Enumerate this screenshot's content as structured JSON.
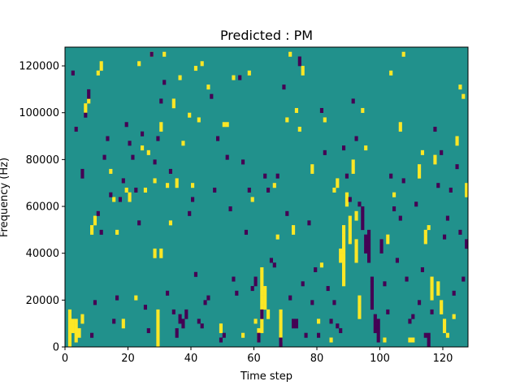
{
  "chart_data": {
    "type": "heatmap",
    "title": "Predicted : PM",
    "xlabel": "Time step",
    "ylabel": "Frequency (Hz)",
    "xlim": [
      0,
      128
    ],
    "ylim": [
      0,
      128000
    ],
    "x_ticks": [
      0,
      20,
      40,
      60,
      80,
      100,
      120
    ],
    "x_tick_labels": [
      "0",
      "20",
      "40",
      "60",
      "80",
      "100",
      "120"
    ],
    "y_ticks": [
      0,
      20000,
      40000,
      60000,
      80000,
      100000,
      120000
    ],
    "y_tick_labels": [
      "0",
      "20000",
      "40000",
      "60000",
      "80000",
      "100000",
      "120000"
    ],
    "grid": false,
    "legend": "none",
    "time_steps": 128,
    "frequency_bins": 64,
    "colors": {
      "background_value": "#21918c",
      "high_value": "#fde725",
      "low_value": "#440154"
    },
    "cells": {
      "high": [
        [
          1,
          0
        ],
        [
          1,
          1
        ],
        [
          1,
          2
        ],
        [
          1,
          3
        ],
        [
          1,
          4
        ],
        [
          1,
          5
        ],
        [
          1,
          6
        ],
        [
          1,
          7
        ],
        [
          2,
          3
        ],
        [
          2,
          4
        ],
        [
          2,
          5
        ],
        [
          3,
          1
        ],
        [
          3,
          2
        ],
        [
          3,
          3
        ],
        [
          3,
          4
        ],
        [
          3,
          5
        ],
        [
          4,
          2
        ],
        [
          4,
          3
        ],
        [
          5,
          5
        ],
        [
          5,
          6
        ],
        [
          6,
          50
        ],
        [
          6,
          51
        ],
        [
          7,
          52
        ],
        [
          8,
          24
        ],
        [
          8,
          25
        ],
        [
          9,
          26
        ],
        [
          9,
          27
        ],
        [
          10,
          58
        ],
        [
          11,
          59
        ],
        [
          11,
          60
        ],
        [
          14,
          37
        ],
        [
          15,
          31
        ],
        [
          16,
          24
        ],
        [
          18,
          4
        ],
        [
          18,
          5
        ],
        [
          19,
          33
        ],
        [
          20,
          31
        ],
        [
          20,
          32
        ],
        [
          22,
          10
        ],
        [
          23,
          60
        ],
        [
          24,
          42
        ],
        [
          25,
          33
        ],
        [
          26,
          41
        ],
        [
          27,
          62
        ],
        [
          28,
          19
        ],
        [
          28,
          20
        ],
        [
          28,
          35
        ],
        [
          29,
          0
        ],
        [
          29,
          1
        ],
        [
          29,
          2
        ],
        [
          29,
          3
        ],
        [
          29,
          4
        ],
        [
          29,
          5
        ],
        [
          29,
          6
        ],
        [
          29,
          7
        ],
        [
          30,
          19
        ],
        [
          30,
          20
        ],
        [
          30,
          46
        ],
        [
          30,
          47
        ],
        [
          31,
          62
        ],
        [
          32,
          34
        ],
        [
          33,
          26
        ],
        [
          34,
          51
        ],
        [
          34,
          52
        ],
        [
          35,
          34
        ],
        [
          35,
          35
        ],
        [
          36,
          57
        ],
        [
          37,
          43
        ],
        [
          39,
          49
        ],
        [
          40,
          34
        ],
        [
          41,
          59
        ],
        [
          42,
          48
        ],
        [
          43,
          60
        ],
        [
          45,
          55
        ],
        [
          49,
          3
        ],
        [
          49,
          4
        ],
        [
          50,
          47
        ],
        [
          51,
          47
        ],
        [
          53,
          57
        ],
        [
          56,
          2
        ],
        [
          58,
          58
        ],
        [
          59,
          31
        ],
        [
          60,
          5
        ],
        [
          61,
          1
        ],
        [
          61,
          2
        ],
        [
          61,
          3
        ],
        [
          62,
          3
        ],
        [
          62,
          4
        ],
        [
          62,
          5
        ],
        [
          62,
          6
        ],
        [
          62,
          7
        ],
        [
          62,
          8
        ],
        [
          62,
          9
        ],
        [
          62,
          10
        ],
        [
          62,
          11
        ],
        [
          62,
          12
        ],
        [
          62,
          13
        ],
        [
          62,
          14
        ],
        [
          62,
          15
        ],
        [
          62,
          16
        ],
        [
          63,
          8
        ],
        [
          63,
          9
        ],
        [
          63,
          10
        ],
        [
          63,
          11
        ],
        [
          63,
          12
        ],
        [
          64,
          6
        ],
        [
          64,
          7
        ],
        [
          66,
          34
        ],
        [
          67,
          23
        ],
        [
          68,
          1
        ],
        [
          68,
          2
        ],
        [
          68,
          3
        ],
        [
          68,
          4
        ],
        [
          68,
          5
        ],
        [
          68,
          6
        ],
        [
          68,
          7
        ],
        [
          70,
          48
        ],
        [
          71,
          62
        ],
        [
          72,
          24
        ],
        [
          72,
          25
        ],
        [
          73,
          50
        ],
        [
          74,
          46
        ],
        [
          75,
          58
        ],
        [
          75,
          59
        ],
        [
          78,
          37
        ],
        [
          78,
          38
        ],
        [
          80,
          5
        ],
        [
          81,
          17
        ],
        [
          82,
          48
        ],
        [
          84,
          1
        ],
        [
          85,
          33
        ],
        [
          86,
          34
        ],
        [
          86,
          35
        ],
        [
          87,
          18
        ],
        [
          87,
          19
        ],
        [
          87,
          20
        ],
        [
          88,
          13
        ],
        [
          88,
          14
        ],
        [
          88,
          15
        ],
        [
          88,
          16
        ],
        [
          88,
          17
        ],
        [
          88,
          18
        ],
        [
          88,
          19
        ],
        [
          88,
          20
        ],
        [
          88,
          21
        ],
        [
          88,
          22
        ],
        [
          88,
          23
        ],
        [
          88,
          24
        ],
        [
          88,
          25
        ],
        [
          89,
          30
        ],
        [
          89,
          31
        ],
        [
          89,
          32
        ],
        [
          90,
          22
        ],
        [
          90,
          23
        ],
        [
          90,
          24
        ],
        [
          90,
          25
        ],
        [
          90,
          26
        ],
        [
          90,
          27
        ],
        [
          91,
          37
        ],
        [
          91,
          38
        ],
        [
          91,
          39
        ],
        [
          92,
          18
        ],
        [
          92,
          19
        ],
        [
          92,
          20
        ],
        [
          92,
          21
        ],
        [
          92,
          22
        ],
        [
          92,
          27
        ],
        [
          92,
          28
        ],
        [
          93,
          6
        ],
        [
          93,
          7
        ],
        [
          93,
          8
        ],
        [
          93,
          9
        ],
        [
          93,
          10
        ],
        [
          94,
          50
        ],
        [
          95,
          42
        ],
        [
          101,
          1
        ],
        [
          102,
          22
        ],
        [
          102,
          23
        ],
        [
          103,
          58
        ],
        [
          104,
          32
        ],
        [
          106,
          46
        ],
        [
          106,
          47
        ],
        [
          107,
          62
        ],
        [
          109,
          1
        ],
        [
          110,
          1
        ],
        [
          112,
          36
        ],
        [
          112,
          37
        ],
        [
          112,
          38
        ],
        [
          113,
          41
        ],
        [
          114,
          22
        ],
        [
          114,
          23
        ],
        [
          114,
          24
        ],
        [
          115,
          25
        ],
        [
          116,
          10
        ],
        [
          116,
          11
        ],
        [
          116,
          12
        ],
        [
          116,
          13
        ],
        [
          116,
          14
        ],
        [
          117,
          39
        ],
        [
          117,
          40
        ],
        [
          118,
          11
        ],
        [
          118,
          12
        ],
        [
          118,
          13
        ],
        [
          119,
          7
        ],
        [
          119,
          8
        ],
        [
          119,
          9
        ],
        [
          120,
          3
        ],
        [
          120,
          4
        ],
        [
          120,
          5
        ],
        [
          121,
          2
        ],
        [
          123,
          6
        ],
        [
          124,
          43
        ],
        [
          124,
          44
        ],
        [
          125,
          55
        ],
        [
          126,
          53
        ],
        [
          127,
          32
        ],
        [
          127,
          33
        ],
        [
          127,
          34
        ]
      ],
      "low": [
        [
          2,
          58
        ],
        [
          3,
          46
        ],
        [
          5,
          36
        ],
        [
          5,
          37
        ],
        [
          6,
          49
        ],
        [
          7,
          53
        ],
        [
          7,
          54
        ],
        [
          8,
          2
        ],
        [
          9,
          9
        ],
        [
          10,
          28
        ],
        [
          11,
          24
        ],
        [
          12,
          40
        ],
        [
          13,
          44
        ],
        [
          14,
          32
        ],
        [
          15,
          5
        ],
        [
          16,
          10
        ],
        [
          17,
          31
        ],
        [
          18,
          35
        ],
        [
          19,
          47
        ],
        [
          20,
          43
        ],
        [
          21,
          40
        ],
        [
          22,
          33
        ],
        [
          23,
          26
        ],
        [
          24,
          45
        ],
        [
          25,
          8
        ],
        [
          26,
          3
        ],
        [
          27,
          62
        ],
        [
          28,
          39
        ],
        [
          29,
          44
        ],
        [
          30,
          52
        ],
        [
          31,
          56
        ],
        [
          32,
          11
        ],
        [
          33,
          37
        ],
        [
          34,
          7
        ],
        [
          35,
          2
        ],
        [
          35,
          3
        ],
        [
          36,
          5
        ],
        [
          36,
          6
        ],
        [
          37,
          4
        ],
        [
          37,
          5
        ],
        [
          38,
          6
        ],
        [
          38,
          7
        ],
        [
          39,
          28
        ],
        [
          40,
          31
        ],
        [
          41,
          15
        ],
        [
          42,
          5
        ],
        [
          43,
          4
        ],
        [
          44,
          9
        ],
        [
          45,
          10
        ],
        [
          46,
          53
        ],
        [
          47,
          33
        ],
        [
          48,
          44
        ],
        [
          49,
          1
        ],
        [
          50,
          2
        ],
        [
          51,
          40
        ],
        [
          52,
          29
        ],
        [
          53,
          14
        ],
        [
          54,
          11
        ],
        [
          55,
          57
        ],
        [
          56,
          39
        ],
        [
          57,
          24
        ],
        [
          58,
          33
        ],
        [
          59,
          12
        ],
        [
          60,
          13
        ],
        [
          60,
          14
        ],
        [
          61,
          1
        ],
        [
          61,
          2
        ],
        [
          62,
          6
        ],
        [
          62,
          7
        ],
        [
          63,
          36
        ],
        [
          64,
          33
        ],
        [
          65,
          18
        ],
        [
          66,
          17
        ],
        [
          67,
          36
        ],
        [
          68,
          0
        ],
        [
          68,
          1
        ],
        [
          69,
          55
        ],
        [
          70,
          28
        ],
        [
          71,
          10
        ],
        [
          72,
          4
        ],
        [
          72,
          5
        ],
        [
          73,
          4
        ],
        [
          73,
          5
        ],
        [
          74,
          60
        ],
        [
          74,
          61
        ],
        [
          75,
          13
        ],
        [
          76,
          2
        ],
        [
          77,
          26
        ],
        [
          78,
          9
        ],
        [
          79,
          16
        ],
        [
          80,
          2
        ],
        [
          81,
          50
        ],
        [
          82,
          41
        ],
        [
          83,
          12
        ],
        [
          84,
          5
        ],
        [
          85,
          9
        ],
        [
          86,
          4
        ],
        [
          87,
          3
        ],
        [
          88,
          42
        ],
        [
          89,
          36
        ],
        [
          90,
          31
        ],
        [
          91,
          52
        ],
        [
          92,
          44
        ],
        [
          93,
          30
        ],
        [
          94,
          25
        ],
        [
          94,
          26
        ],
        [
          94,
          27
        ],
        [
          94,
          28
        ],
        [
          94,
          29
        ],
        [
          95,
          20
        ],
        [
          95,
          21
        ],
        [
          95,
          22
        ],
        [
          95,
          23
        ],
        [
          96,
          18
        ],
        [
          96,
          19
        ],
        [
          96,
          20
        ],
        [
          96,
          21
        ],
        [
          96,
          22
        ],
        [
          96,
          23
        ],
        [
          96,
          24
        ],
        [
          97,
          8
        ],
        [
          97,
          9
        ],
        [
          97,
          10
        ],
        [
          97,
          11
        ],
        [
          97,
          12
        ],
        [
          97,
          13
        ],
        [
          97,
          14
        ],
        [
          98,
          3
        ],
        [
          98,
          4
        ],
        [
          98,
          5
        ],
        [
          98,
          6
        ],
        [
          99,
          1
        ],
        [
          99,
          2
        ],
        [
          99,
          3
        ],
        [
          99,
          4
        ],
        [
          99,
          5
        ],
        [
          100,
          20
        ],
        [
          100,
          21
        ],
        [
          100,
          22
        ],
        [
          101,
          13
        ],
        [
          102,
          7
        ],
        [
          103,
          36
        ],
        [
          104,
          29
        ],
        [
          105,
          18
        ],
        [
          106,
          27
        ],
        [
          107,
          35
        ],
        [
          108,
          14
        ],
        [
          109,
          5
        ],
        [
          110,
          6
        ],
        [
          111,
          30
        ],
        [
          112,
          9
        ],
        [
          113,
          16
        ],
        [
          114,
          2
        ],
        [
          115,
          0
        ],
        [
          115,
          1
        ],
        [
          115,
          2
        ],
        [
          116,
          7
        ],
        [
          117,
          46
        ],
        [
          118,
          34
        ],
        [
          119,
          41
        ],
        [
          120,
          23
        ],
        [
          121,
          27
        ],
        [
          122,
          33
        ],
        [
          123,
          11
        ],
        [
          124,
          38
        ],
        [
          125,
          24
        ],
        [
          126,
          14
        ],
        [
          127,
          21
        ],
        [
          127,
          22
        ]
      ]
    }
  }
}
